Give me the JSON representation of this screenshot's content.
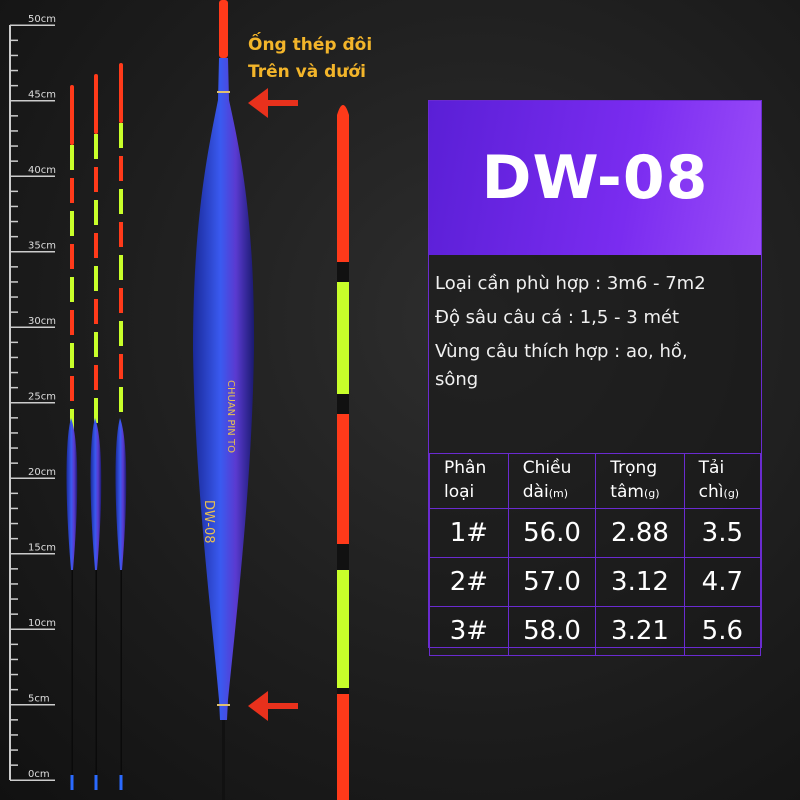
{
  "ruler": {
    "labels": [
      "50cm",
      "45cm",
      "40cm",
      "35cm",
      "30cm",
      "25cm",
      "20cm",
      "15cm",
      "10cm",
      "5cm",
      "0cm"
    ]
  },
  "caption": {
    "line1": "Ống thép đôi",
    "line2": "Trên và dưới"
  },
  "float_text": {
    "brand": "CHUAN PIN TO",
    "model": "DW-08"
  },
  "colors": {
    "accent_purple": "#7a2cf0",
    "tip_red": "#ff3a1a",
    "tip_green": "#c8ff2a",
    "body_blue": "#2a3fd0",
    "caption_gold": "#f3b52a",
    "arrow_red": "#e8311c"
  },
  "icons": [
    "arrow-left-icon",
    "arrow-left-icon"
  ],
  "spec": {
    "title": "DW-08",
    "lines": [
      "Loại cần phù hợp : 3m6 - 7m2",
      "Độ sâu câu cá : 1,5 - 3 mét",
      "Vùng câu thích hợp : ao, hồ,",
      "sông"
    ],
    "table": {
      "headers": [
        {
          "l1": "Phân",
          "l2": "loại",
          "unit": ""
        },
        {
          "l1": "Chiều",
          "l2": "dài",
          "unit": "(m)"
        },
        {
          "l1": "Trọng",
          "l2": "tâm",
          "unit": "(g)"
        },
        {
          "l1": "Tải",
          "l2": "chì",
          "unit": "(g)"
        }
      ],
      "rows": [
        [
          "1#",
          "56.0",
          "2.88",
          "3.5"
        ],
        [
          "2#",
          "57.0",
          "3.12",
          "4.7"
        ],
        [
          "3#",
          "58.0",
          "3.21",
          "5.6"
        ]
      ]
    }
  }
}
